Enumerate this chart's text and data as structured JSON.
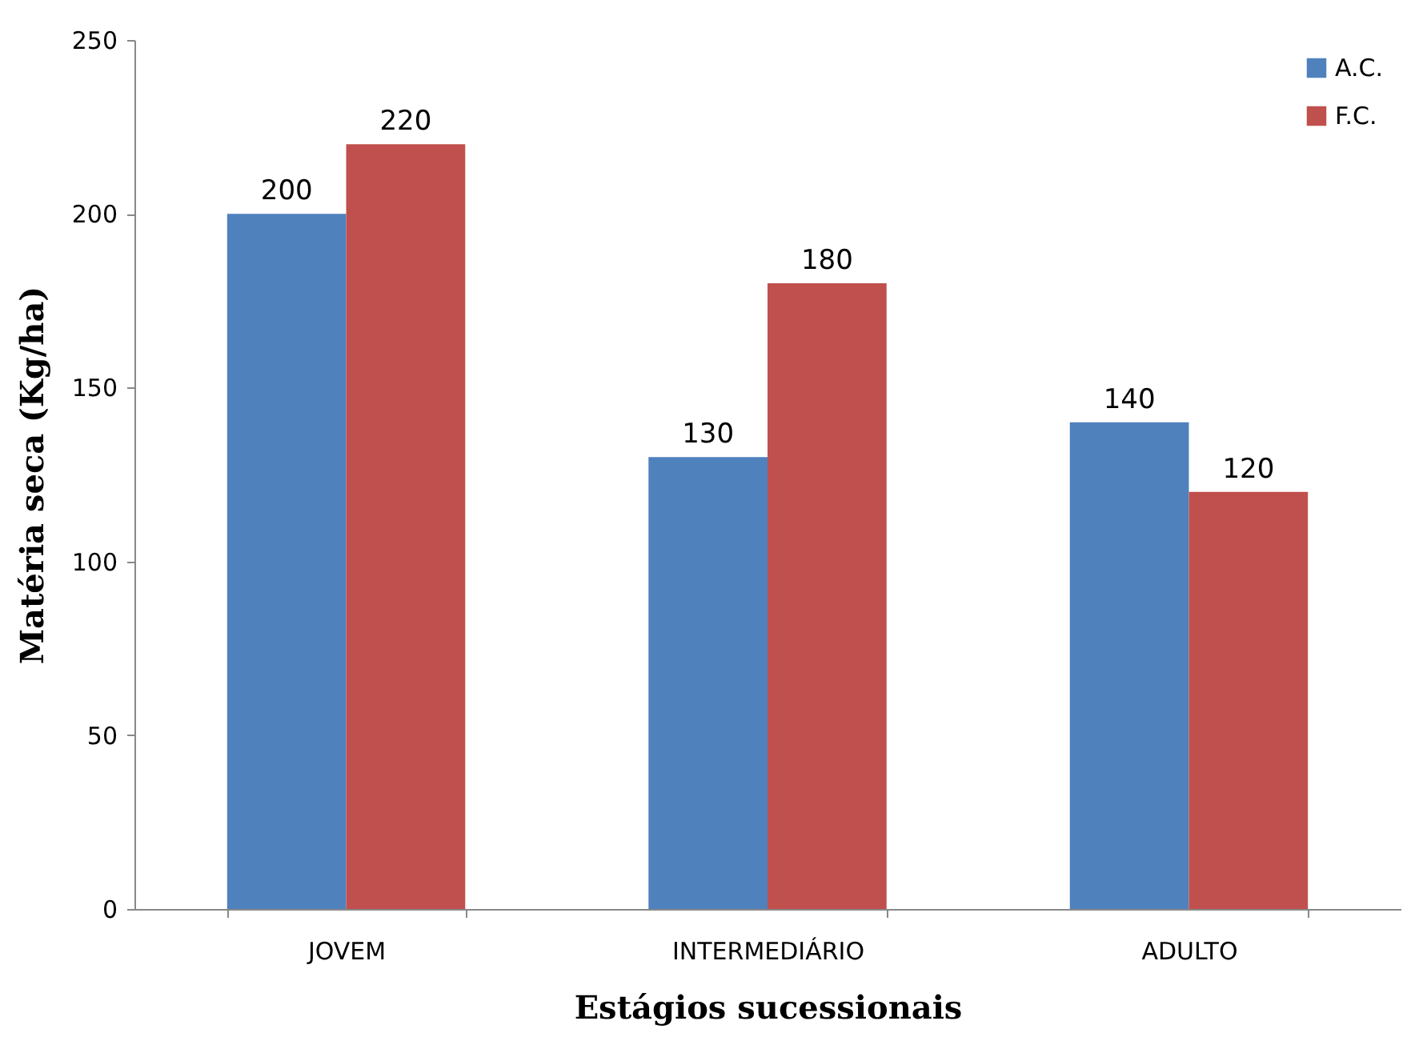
{
  "chart_data": {
    "type": "bar",
    "xlabel": "Estágios sucessionais",
    "ylabel": "Matéria seca (Kg/ha)",
    "categories": [
      "JOVEM",
      "INTERMEDIÁRIO",
      "ADULTO"
    ],
    "series": [
      {
        "name": "A.C.",
        "color": "#4f81bd",
        "values": [
          200,
          130,
          140
        ]
      },
      {
        "name": "F.C.",
        "color": "#c0504d",
        "values": [
          220,
          180,
          120
        ]
      }
    ],
    "ylim": [
      0,
      250
    ],
    "yticks": [
      0,
      50,
      100,
      150,
      200,
      250
    ],
    "grid": false,
    "legend": "top right",
    "data_labels": true
  }
}
